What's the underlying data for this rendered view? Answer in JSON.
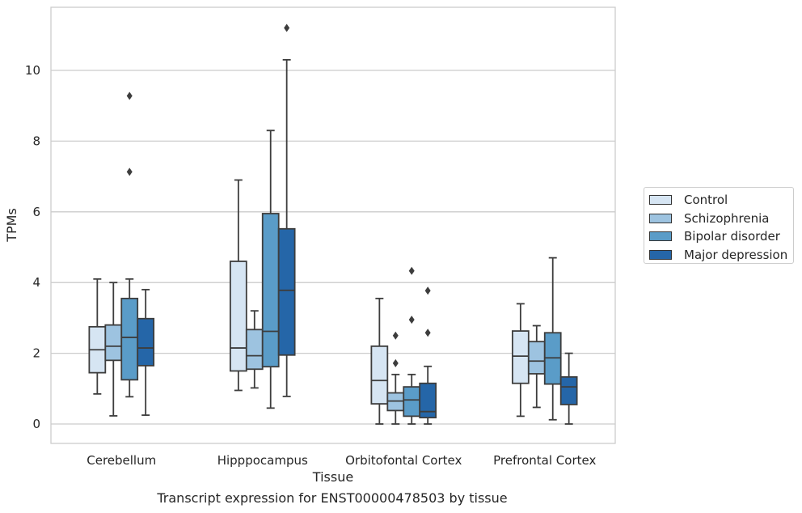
{
  "chart_data": {
    "type": "box",
    "xlabel": "Tissue",
    "ylabel": "TPMs",
    "ylim": [
      -0.55,
      11.75
    ],
    "yticks": [
      0,
      2,
      4,
      6,
      8,
      10
    ],
    "grid": "horizontal",
    "legend_position": "right",
    "categories": [
      "Cerebellum",
      "Hipppocampus",
      "Orbitofontal Cortex",
      "Prefrontal Cortex"
    ],
    "series": [
      {
        "name": "Control",
        "color": "#d6e5f3",
        "boxes": [
          {
            "whislo": 0.85,
            "q1": 1.45,
            "med": 2.1,
            "q3": 2.75,
            "whishi": 4.1,
            "fliers": []
          },
          {
            "whislo": 0.95,
            "q1": 1.5,
            "med": 2.15,
            "q3": 4.6,
            "whishi": 6.9,
            "fliers": []
          },
          {
            "whislo": 0.0,
            "q1": 0.57,
            "med": 1.23,
            "q3": 2.2,
            "whishi": 3.55,
            "fliers": []
          },
          {
            "whislo": 0.22,
            "q1": 1.15,
            "med": 1.92,
            "q3": 2.63,
            "whishi": 3.4,
            "fliers": []
          }
        ]
      },
      {
        "name": "Schizophrenia",
        "color": "#9dc3e0",
        "boxes": [
          {
            "whislo": 0.23,
            "q1": 1.8,
            "med": 2.2,
            "q3": 2.8,
            "whishi": 4.0,
            "fliers": []
          },
          {
            "whislo": 1.02,
            "q1": 1.55,
            "med": 1.93,
            "q3": 2.67,
            "whishi": 3.2,
            "fliers": []
          },
          {
            "whislo": 0.0,
            "q1": 0.38,
            "med": 0.65,
            "q3": 0.88,
            "whishi": 1.4,
            "fliers": [
              1.72,
              2.5
            ]
          },
          {
            "whislo": 0.47,
            "q1": 1.42,
            "med": 1.78,
            "q3": 2.33,
            "whishi": 2.78,
            "fliers": []
          }
        ]
      },
      {
        "name": "Bipolar disorder",
        "color": "#5a9cc8",
        "boxes": [
          {
            "whislo": 0.77,
            "q1": 1.25,
            "med": 2.45,
            "q3": 3.55,
            "whishi": 4.1,
            "fliers": [
              7.13,
              9.28
            ]
          },
          {
            "whislo": 0.45,
            "q1": 1.62,
            "med": 2.62,
            "q3": 5.95,
            "whishi": 8.3,
            "fliers": []
          },
          {
            "whislo": 0.0,
            "q1": 0.22,
            "med": 0.68,
            "q3": 1.05,
            "whishi": 1.4,
            "fliers": [
              2.95,
              4.33
            ]
          },
          {
            "whislo": 0.12,
            "q1": 1.13,
            "med": 1.87,
            "q3": 2.58,
            "whishi": 4.7,
            "fliers": []
          }
        ]
      },
      {
        "name": "Major depression",
        "color": "#2566a8",
        "boxes": [
          {
            "whislo": 0.25,
            "q1": 1.65,
            "med": 2.15,
            "q3": 2.98,
            "whishi": 3.8,
            "fliers": []
          },
          {
            "whislo": 0.78,
            "q1": 1.95,
            "med": 3.78,
            "q3": 5.52,
            "whishi": 10.3,
            "fliers": [
              11.2
            ]
          },
          {
            "whislo": 0.0,
            "q1": 0.18,
            "med": 0.35,
            "q3": 1.15,
            "whishi": 1.63,
            "fliers": [
              2.58,
              3.77
            ]
          },
          {
            "whislo": 0.0,
            "q1": 0.55,
            "med": 1.05,
            "q3": 1.33,
            "whishi": 2.0,
            "fliers": []
          }
        ]
      }
    ]
  },
  "caption": "Transcript expression for ENST00000478503 by tissue"
}
